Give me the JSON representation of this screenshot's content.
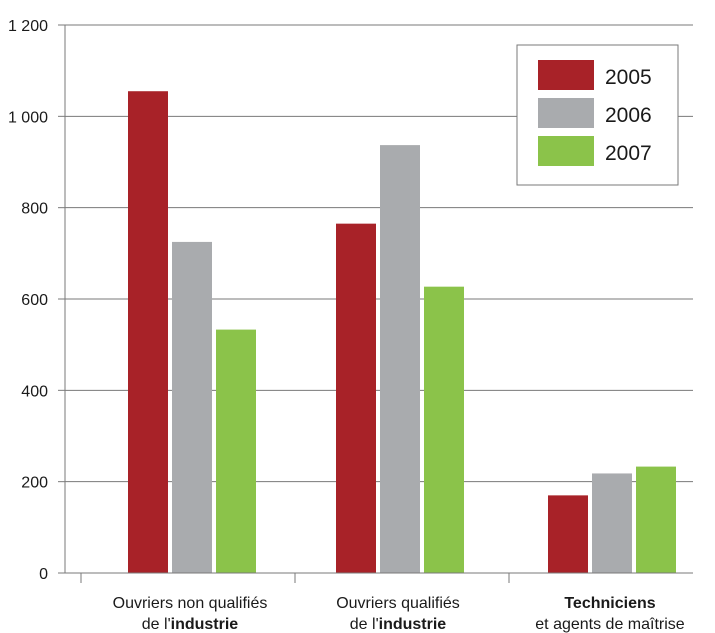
{
  "chart_data": {
    "type": "bar",
    "title": "",
    "xlabel": "",
    "ylabel": "",
    "ylim": [
      0,
      1200
    ],
    "yticks": [
      0,
      200,
      400,
      600,
      800,
      1000,
      1200
    ],
    "ytick_labels": [
      "0",
      "200",
      "400",
      "600",
      "800",
      "1 000",
      "1 200"
    ],
    "grid": "horizontal",
    "legend_position": "top-right",
    "categories": [
      {
        "line1": "Ouvriers non qualifiés",
        "line2_prefix": "de l'",
        "line2_bold": "industrie",
        "line1_bold": "",
        "line2": ""
      },
      {
        "line1": "Ouvriers qualifiés",
        "line2_prefix": "de l'",
        "line2_bold": "industrie",
        "line1_bold": "",
        "line2": ""
      },
      {
        "line1": "",
        "line1_bold": "Techniciens",
        "line2_prefix": "",
        "line2_bold": "",
        "line2": "et agents de maîtrise"
      }
    ],
    "series": [
      {
        "name": "2005",
        "color": "#a82228",
        "values": [
          1055,
          765,
          170
        ]
      },
      {
        "name": "2006",
        "color": "#a9abae",
        "values": [
          725,
          937,
          218
        ]
      },
      {
        "name": "2007",
        "color": "#8bc34a",
        "values": [
          533,
          627,
          233
        ]
      }
    ]
  }
}
